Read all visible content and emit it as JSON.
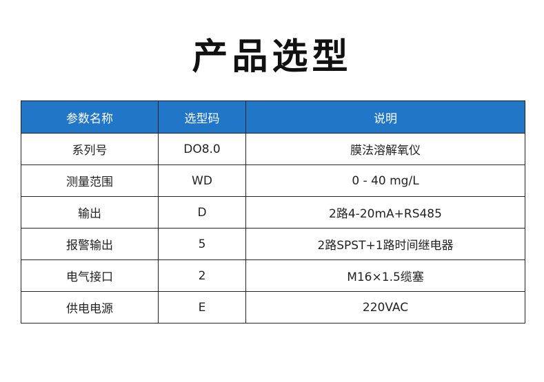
{
  "title": "产品选型",
  "colors": {
    "header_bg": "#2176c8"
  },
  "table": {
    "headers": [
      "参数名称",
      "选型码",
      "说明"
    ],
    "rows": [
      [
        "系列号",
        "DO8.0",
        "膜法溶解氧仪"
      ],
      [
        "测量范围",
        "WD",
        "0 - 40 mg/L"
      ],
      [
        "输出",
        "D",
        "2路4-20mA+RS485"
      ],
      [
        "报警输出",
        "5",
        "2路SPST+1路时间继电器"
      ],
      [
        "电气接口",
        "2",
        "M16×1.5缆塞"
      ],
      [
        "供电电源",
        "E",
        "220VAC"
      ]
    ]
  }
}
